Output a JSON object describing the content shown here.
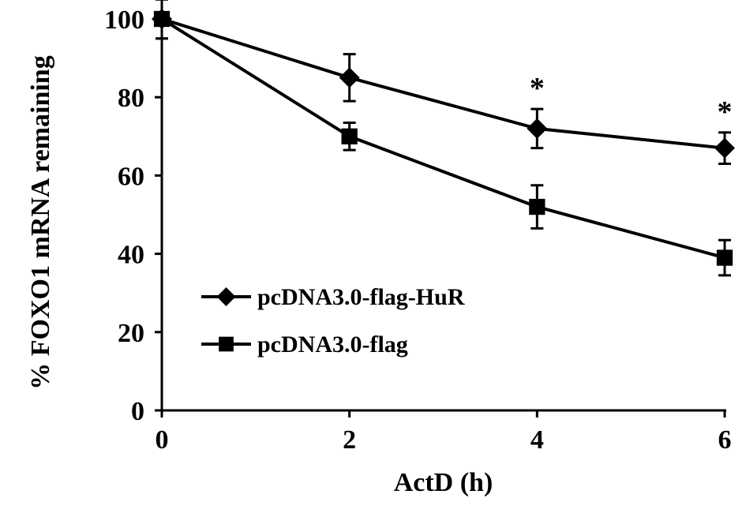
{
  "chart_data": {
    "type": "line",
    "xlabel": "ActD (h)",
    "ylabel": "% FOXO1 mRNA remaining",
    "x": [
      0,
      2,
      4,
      6
    ],
    "x_ticks": [
      "0",
      "2",
      "4",
      "6"
    ],
    "y_ticks": [
      "0",
      "20",
      "40",
      "60",
      "80",
      "100"
    ],
    "xlim": [
      0,
      6
    ],
    "ylim": [
      0,
      100
    ],
    "grid": false,
    "legend_position": "lower-left",
    "series": [
      {
        "name": "pcDNA3.0-flag-HuR",
        "marker": "diamond",
        "values": [
          100,
          85,
          72,
          67
        ],
        "errors": [
          5,
          6,
          5,
          4
        ],
        "significance": [
          "",
          "",
          "*",
          "*"
        ]
      },
      {
        "name": "pcDNA3.0-flag",
        "marker": "square",
        "values": [
          100,
          70,
          52,
          39
        ],
        "errors": [
          5,
          3.5,
          5.5,
          4.5
        ],
        "significance": [
          "",
          "",
          "",
          ""
        ]
      }
    ],
    "colors": {
      "line": "#000000",
      "background": "#ffffff"
    }
  }
}
